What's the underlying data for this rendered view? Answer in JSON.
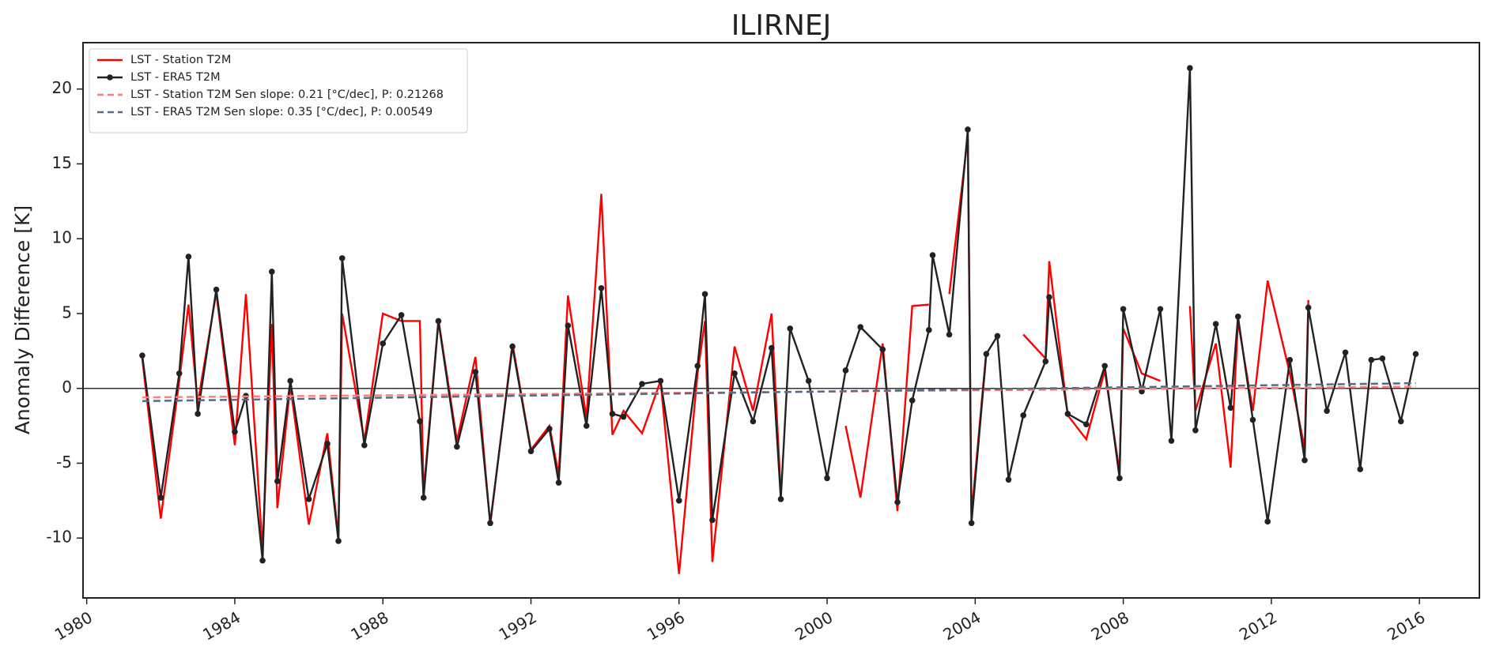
{
  "chart_data": {
    "type": "line",
    "title": "ILIRNEJ",
    "y_label": "Anomaly Difference [K]",
    "xlim": [
      1979.9,
      2017.62
    ],
    "ylim": [
      -14,
      23.1
    ],
    "xticks": [
      1980,
      1984,
      1988,
      1992,
      1996,
      2000,
      2004,
      2008,
      2012,
      2016
    ],
    "yticks": [
      -10,
      -5,
      0,
      5,
      10,
      15,
      20
    ],
    "reference_line": 0,
    "legend": "upper left",
    "series": [
      {
        "name": "LST - Station T2M",
        "color": "#ff0000",
        "linestyle": "solid",
        "x": [
          1981.5,
          1982.0,
          1982.5,
          1982.75,
          1983.0,
          1983.5,
          1984.0,
          1984.3,
          1984.75,
          1985.0,
          1985.15,
          1985.5,
          1986.0,
          1986.5,
          1986.8,
          1986.9,
          1987.5,
          1988.0,
          1988.5,
          1989.0,
          1989.1,
          1989.5,
          1990.0,
          1990.5,
          1990.9,
          1991.5,
          1992.0,
          1992.5,
          1992.75,
          1993.0,
          1993.5,
          1993.9,
          1994.2,
          1994.5,
          1995.0,
          1995.5,
          1996.0,
          1996.5,
          1996.7,
          1996.9,
          1997.5,
          1998.0,
          1998.5,
          1998.75,
          1999.0,
          1999.5,
          2000.0,
          2000.5,
          2000.9,
          2001.5,
          2001.9,
          2002.3,
          2002.75,
          2002.85,
          2003.3,
          2003.8,
          2003.9,
          2004.3,
          2004.6,
          2004.9,
          2005.3,
          2005.9,
          2006.0,
          2006.5,
          2007.0,
          2007.5,
          2007.9,
          2008.0,
          2008.5,
          2009.0,
          2009.3,
          2009.8,
          2009.95,
          2010.5,
          2010.9,
          2011.1,
          2011.5,
          2011.9,
          2012.5,
          2012.9,
          2013.0,
          2013.5,
          2014.0,
          2014.4,
          2014.7,
          2015.0,
          2015.5,
          2015.9
        ],
        "values": [
          2.0,
          -8.7,
          0.5,
          5.6,
          -1.0,
          6.4,
          -3.8,
          6.3,
          -10.8,
          4.3,
          -8.0,
          0.2,
          -9.1,
          -3.0,
          -10.0,
          5.0,
          -3.5,
          5.0,
          4.5,
          4.5,
          -7.0,
          4.6,
          -3.5,
          2.1,
          -9.1,
          3.0,
          -4.1,
          -2.5,
          -5.8,
          6.2,
          -2.0,
          13.0,
          -3.1,
          -1.5,
          -3.0,
          0.5,
          -12.4,
          1.0,
          4.5,
          -11.6,
          2.8,
          -1.5,
          5.0,
          -7.0,
          null,
          null,
          null,
          -2.5,
          -7.3,
          3.0,
          -8.2,
          5.5,
          5.6,
          null,
          6.3,
          16.8,
          -8.5,
          2.5,
          null,
          null,
          3.6,
          2.0,
          8.5,
          -1.8,
          -3.4,
          1.2,
          -5.6,
          4.0,
          1.0,
          0.5,
          null,
          5.5,
          -1.5,
          3.0,
          -5.3,
          4.5,
          -1.5,
          7.2,
          1.0,
          -4.0,
          5.9,
          null,
          null,
          null,
          null,
          null,
          null,
          0.4
        ]
      },
      {
        "name": "LST - ERA5 T2M",
        "color": "#222222",
        "linestyle": "solid",
        "marker": "o",
        "x": [
          1981.5,
          1982.0,
          1982.5,
          1982.75,
          1983.0,
          1983.5,
          1984.0,
          1984.3,
          1984.75,
          1985.0,
          1985.15,
          1985.5,
          1986.0,
          1986.5,
          1986.8,
          1986.9,
          1987.5,
          1988.0,
          1988.5,
          1989.0,
          1989.1,
          1989.5,
          1990.0,
          1990.5,
          1990.9,
          1991.5,
          1992.0,
          1992.5,
          1992.75,
          1993.0,
          1993.5,
          1993.9,
          1994.2,
          1994.5,
          1995.0,
          1995.5,
          1996.0,
          1996.5,
          1996.7,
          1996.9,
          1997.5,
          1998.0,
          1998.5,
          1998.75,
          1999.0,
          1999.5,
          2000.0,
          2000.5,
          2000.9,
          2001.5,
          2001.9,
          2002.3,
          2002.75,
          2002.85,
          2003.3,
          2003.8,
          2003.9,
          2004.3,
          2004.6,
          2004.9,
          2005.3,
          2005.9,
          2006.0,
          2006.5,
          2007.0,
          2007.5,
          2007.9,
          2008.0,
          2008.5,
          2009.0,
          2009.3,
          2009.8,
          2009.95,
          2010.5,
          2010.9,
          2011.1,
          2011.5,
          2011.9,
          2012.5,
          2012.9,
          2013.0,
          2013.5,
          2014.0,
          2014.4,
          2014.7,
          2015.0,
          2015.5,
          2015.9
        ],
        "values": [
          2.2,
          -7.3,
          1.0,
          8.8,
          -1.7,
          6.6,
          -2.9,
          -0.5,
          -11.5,
          7.8,
          -6.2,
          0.5,
          -7.4,
          -3.7,
          -10.2,
          8.7,
          -3.8,
          3.0,
          4.9,
          -2.2,
          -7.3,
          4.5,
          -3.9,
          1.1,
          -9.0,
          2.8,
          -4.2,
          -2.7,
          -6.3,
          4.2,
          -2.5,
          6.7,
          -1.7,
          -1.9,
          0.3,
          0.5,
          -7.5,
          1.5,
          6.3,
          -8.8,
          1.0,
          -2.2,
          2.7,
          -7.4,
          4.0,
          0.5,
          -6.0,
          1.2,
          4.1,
          2.6,
          -7.6,
          -0.8,
          3.9,
          8.9,
          3.6,
          17.3,
          -9.0,
          2.3,
          3.5,
          -6.1,
          -1.8,
          1.8,
          6.1,
          -1.7,
          -2.4,
          1.5,
          -6.0,
          5.3,
          -0.2,
          5.3,
          -3.5,
          21.4,
          -2.8,
          4.3,
          -1.3,
          4.8,
          -2.1,
          -8.9,
          1.9,
          -4.8,
          5.4,
          -1.5,
          2.4,
          -5.4,
          1.9,
          2.0,
          -2.2,
          2.3
        ]
      },
      {
        "name": "LST - Station T2M  Sen slope: 0.21 [°C/dec], P: 0.21268",
        "color": "#ff7f7f",
        "linestyle": "dashed",
        "x": [
          1981.5,
          2015.9
        ],
        "values": [
          -0.6,
          0.12
        ]
      },
      {
        "name": "LST - ERA5 T2M Sen slope: 0.35 [°C/dec], P: 0.00549",
        "color": "#5a6a80",
        "linestyle": "dashed",
        "x": [
          1981.5,
          2015.9
        ],
        "values": [
          -0.85,
          0.35
        ]
      }
    ]
  }
}
